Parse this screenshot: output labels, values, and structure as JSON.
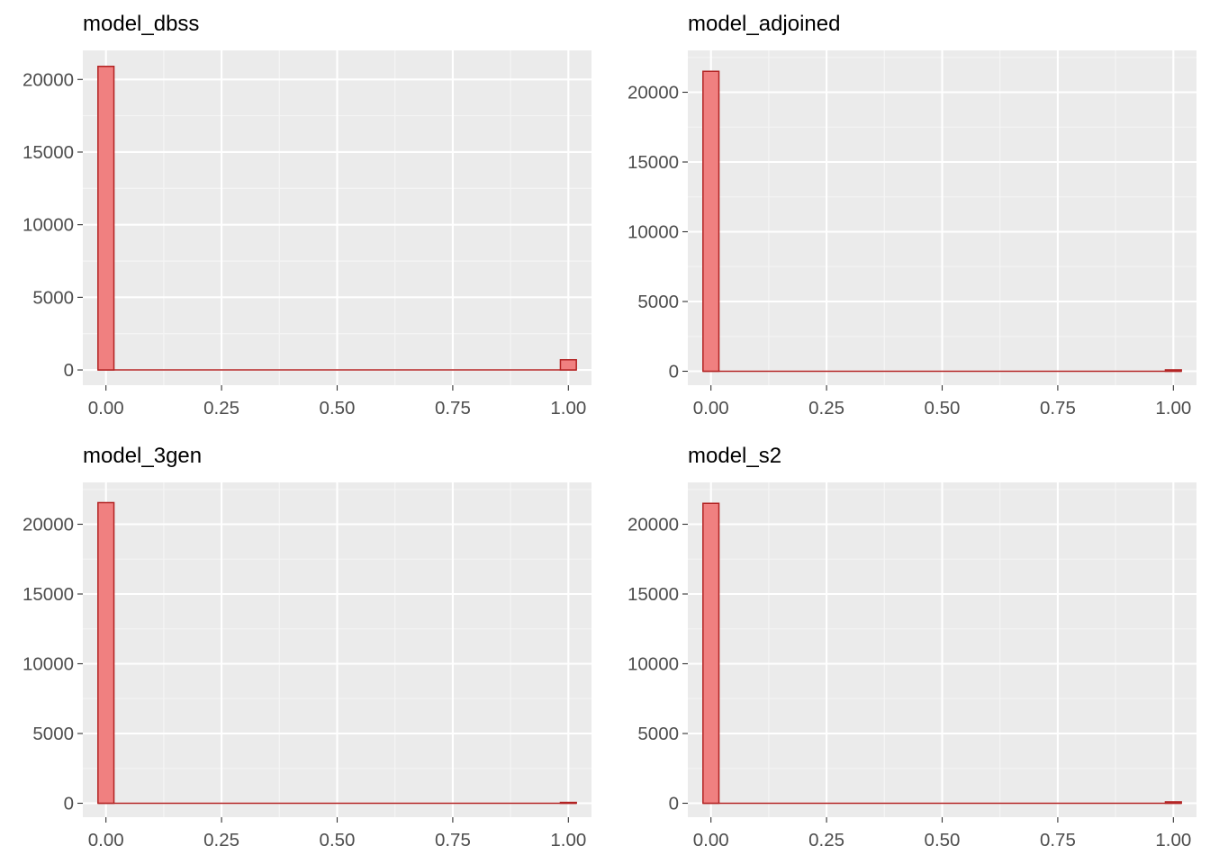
{
  "colors": {
    "panel_bg": "#EBEBEB",
    "grid_major": "#FFFFFF",
    "grid_minor": "#F5F5F5",
    "bar_fill": "#F08080",
    "bar_outline": "#B22222",
    "tick_text": "#4D4D4D",
    "title_text": "#000000"
  },
  "chart_data": [
    {
      "type": "bar",
      "title": "model_dbss",
      "xlabel": "",
      "ylabel": "",
      "xlim": [
        -0.05,
        1.05
      ],
      "ylim": [
        -1050,
        22000
      ],
      "xticks": [
        0,
        0.25,
        0.5,
        0.75,
        1
      ],
      "xtick_labels": [
        "0.00",
        "0.25",
        "0.50",
        "0.75",
        "1.00"
      ],
      "yticks": [
        0,
        5000,
        10000,
        15000,
        20000
      ],
      "ytick_labels": [
        "0",
        "5000",
        "10000",
        "15000",
        "20000"
      ],
      "bin_width": 0.0345,
      "bins_x0": -0.017,
      "bins_x1": 1.017,
      "bars": [
        {
          "x": 0.0,
          "count": 20900
        },
        {
          "x": 1.0,
          "count": 700
        }
      ]
    },
    {
      "type": "bar",
      "title": "model_adjoined",
      "xlabel": "",
      "ylabel": "",
      "xlim": [
        -0.05,
        1.05
      ],
      "ylim": [
        -1000,
        23000
      ],
      "xticks": [
        0,
        0.25,
        0.5,
        0.75,
        1
      ],
      "xtick_labels": [
        "0.00",
        "0.25",
        "0.50",
        "0.75",
        "1.00"
      ],
      "yticks": [
        0,
        5000,
        10000,
        15000,
        20000
      ],
      "ytick_labels": [
        "0",
        "5000",
        "10000",
        "15000",
        "20000"
      ],
      "bin_width": 0.0345,
      "bins_x0": -0.017,
      "bins_x1": 1.017,
      "bars": [
        {
          "x": 0.0,
          "count": 21500
        },
        {
          "x": 1.0,
          "count": 100
        }
      ]
    },
    {
      "type": "bar",
      "title": "model_3gen",
      "xlabel": "",
      "ylabel": "",
      "xlim": [
        -0.05,
        1.05
      ],
      "ylim": [
        -1000,
        23000
      ],
      "xticks": [
        0,
        0.25,
        0.5,
        0.75,
        1
      ],
      "xtick_labels": [
        "0.00",
        "0.25",
        "0.50",
        "0.75",
        "1.00"
      ],
      "yticks": [
        0,
        5000,
        10000,
        15000,
        20000
      ],
      "ytick_labels": [
        "0",
        "5000",
        "10000",
        "15000",
        "20000"
      ],
      "bin_width": 0.0345,
      "bins_x0": -0.017,
      "bins_x1": 1.017,
      "bars": [
        {
          "x": 0.0,
          "count": 21550
        },
        {
          "x": 1.0,
          "count": 60
        }
      ]
    },
    {
      "type": "bar",
      "title": "model_s2",
      "xlabel": "",
      "ylabel": "",
      "xlim": [
        -0.05,
        1.05
      ],
      "ylim": [
        -1000,
        23000
      ],
      "xticks": [
        0,
        0.25,
        0.5,
        0.75,
        1
      ],
      "xtick_labels": [
        "0.00",
        "0.25",
        "0.50",
        "0.75",
        "1.00"
      ],
      "yticks": [
        0,
        5000,
        10000,
        15000,
        20000
      ],
      "ytick_labels": [
        "0",
        "5000",
        "10000",
        "15000",
        "20000"
      ],
      "bin_width": 0.0345,
      "bins_x0": -0.017,
      "bins_x1": 1.017,
      "bars": [
        {
          "x": 0.0,
          "count": 21500
        },
        {
          "x": 1.0,
          "count": 100
        }
      ]
    }
  ]
}
